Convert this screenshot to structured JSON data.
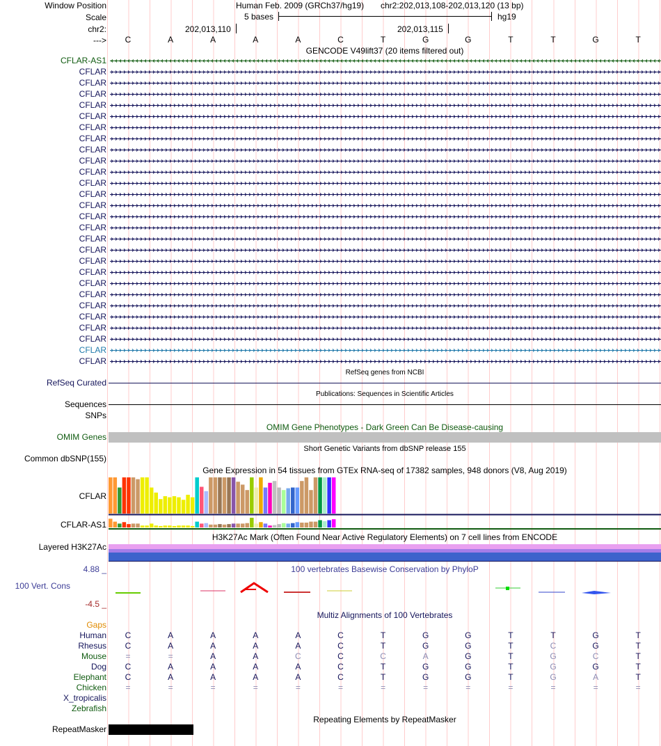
{
  "header": {
    "window_position_label": "Window Position",
    "assembly": "Human Feb. 2009 (GRCh37/hg19)",
    "position": "chr2:202,013,108-202,013,120 (13 bp)",
    "scale_label": "Scale",
    "scale_text": "5 bases",
    "scale_db": "hg19",
    "chrom_label": "chr2:",
    "tick1": "202,013,110",
    "tick2": "202,013,115",
    "strand_label": "--->",
    "bases": [
      "C",
      "A",
      "A",
      "A",
      "A",
      "C",
      "T",
      "G",
      "G",
      "T",
      "T",
      "G",
      "T"
    ]
  },
  "gencode": {
    "title": "GENCODE V49lift37 (20 items filtered out)",
    "items": [
      {
        "label": "CFLAR-AS1",
        "strand": "-",
        "color": "#0f5a0f"
      },
      {
        "label": "CFLAR",
        "strand": "+",
        "color": "#14145a"
      },
      {
        "label": "CFLAR",
        "strand": "+",
        "color": "#14145a"
      },
      {
        "label": "CFLAR",
        "strand": "+",
        "color": "#14145a"
      },
      {
        "label": "CFLAR",
        "strand": "+",
        "color": "#14145a"
      },
      {
        "label": "CFLAR",
        "strand": "+",
        "color": "#14145a"
      },
      {
        "label": "CFLAR",
        "strand": "+",
        "color": "#14145a"
      },
      {
        "label": "CFLAR",
        "strand": "+",
        "color": "#14145a"
      },
      {
        "label": "CFLAR",
        "strand": "+",
        "color": "#14145a"
      },
      {
        "label": "CFLAR",
        "strand": "+",
        "color": "#14145a"
      },
      {
        "label": "CFLAR",
        "strand": "+",
        "color": "#14145a"
      },
      {
        "label": "CFLAR",
        "strand": "+",
        "color": "#14145a"
      },
      {
        "label": "CFLAR",
        "strand": "+",
        "color": "#14145a"
      },
      {
        "label": "CFLAR",
        "strand": "+",
        "color": "#14145a"
      },
      {
        "label": "CFLAR",
        "strand": "+",
        "color": "#14145a"
      },
      {
        "label": "CFLAR",
        "strand": "+",
        "color": "#14145a"
      },
      {
        "label": "CFLAR",
        "strand": "+",
        "color": "#14145a"
      },
      {
        "label": "CFLAR",
        "strand": "+",
        "color": "#14145a"
      },
      {
        "label": "CFLAR",
        "strand": "+",
        "color": "#14145a"
      },
      {
        "label": "CFLAR",
        "strand": "+",
        "color": "#14145a"
      },
      {
        "label": "CFLAR",
        "strand": "+",
        "color": "#14145a"
      },
      {
        "label": "CFLAR",
        "strand": "+",
        "color": "#14145a"
      },
      {
        "label": "CFLAR",
        "strand": "+",
        "color": "#14145a"
      },
      {
        "label": "CFLAR",
        "strand": "+",
        "color": "#14145a"
      },
      {
        "label": "CFLAR",
        "strand": "+",
        "color": "#14145a"
      },
      {
        "label": "CFLAR",
        "strand": "+",
        "color": "#14145a"
      },
      {
        "label": "CFLAR",
        "strand": "+",
        "color": "#1e78aa"
      },
      {
        "label": "CFLAR",
        "strand": "+",
        "color": "#14145a"
      }
    ]
  },
  "refseq": {
    "title": "RefSeq genes from NCBI",
    "label": "RefSeq Curated"
  },
  "publications": {
    "title": "Publications: Sequences in Scientific Articles",
    "label": "Sequences"
  },
  "snps": {
    "label": "SNPs"
  },
  "omim": {
    "title": "OMIM Gene Phenotypes - Dark Green Can Be Disease-causing",
    "label": "OMIM Genes"
  },
  "dbsnp": {
    "title": "Short Genetic Variants from dbSNP release 155",
    "label": "Common dbSNP(155)"
  },
  "gtex": {
    "title": "Gene Expression in 54 tissues from GTEx RNA-seq of 17382 samples, 948 donors (V8, Aug 2019)",
    "label_cflar": "CFLAR",
    "label_as1": "CFLAR-AS1",
    "colors": [
      "#ff9933",
      "#ff9933",
      "#339933",
      "#ff3300",
      "#ff3300",
      "#cc9966",
      "#cc9966",
      "#eeee00",
      "#eeee00",
      "#eeee00",
      "#eeee00",
      "#eeee00",
      "#eeee00",
      "#eeee00",
      "#eeee00",
      "#eeee00",
      "#eeee00",
      "#eeee00",
      "#eeee00",
      "#00cccc",
      "#ff5577",
      "#aabbff",
      "#cc9966",
      "#cc9966",
      "#997755",
      "#cc9966",
      "#997755",
      "#8855aa",
      "#cc9966",
      "#cc9966",
      "#cc9966",
      "#99cc00",
      "#eeeeaa",
      "#eeaa00",
      "#7777ff",
      "#ff00bb",
      "#c0c0c0",
      "#bbbbbb",
      "#aaff99",
      "#77aaee",
      "#3366cc",
      "#6699ff",
      "#cc9966",
      "#cc9966",
      "#cc9966",
      "#cc9966",
      "#009944",
      "#aaeecc",
      "#3333ff",
      "#ff00ff"
    ],
    "cflar_values": [
      100,
      100,
      72,
      100,
      100,
      100,
      95,
      100,
      100,
      72,
      58,
      40,
      48,
      45,
      48,
      45,
      38,
      52,
      45,
      100,
      74,
      62,
      100,
      100,
      100,
      100,
      100,
      100,
      88,
      80,
      65,
      100,
      72,
      100,
      72,
      85,
      90,
      72,
      65,
      70,
      72,
      72,
      90,
      100,
      65,
      100,
      100,
      100,
      100,
      100
    ],
    "as1_values": [
      90,
      60,
      40,
      55,
      35,
      40,
      40,
      20,
      20,
      40,
      20,
      15,
      20,
      20,
      15,
      20,
      20,
      20,
      15,
      60,
      40,
      45,
      30,
      30,
      35,
      30,
      35,
      40,
      40,
      40,
      45,
      100,
      40,
      55,
      40,
      20,
      25,
      35,
      45,
      40,
      45,
      55,
      50,
      50,
      60,
      60,
      75,
      65,
      75,
      85
    ]
  },
  "h3k27ac": {
    "title": "H3K27Ac Mark (Often Found Near Active Regulatory Elements) on 7 cell lines from ENCODE",
    "label": "Layered H3K27Ac"
  },
  "phylop": {
    "title": "100 vertebrates Basewise Conservation by PhyloP",
    "label": "100 Vert. Cons",
    "max": "4.88 _",
    "min": "-4.5 _"
  },
  "multiz": {
    "title": "Multiz Alignments of 100 Vertebrates",
    "gaps_label": "Gaps",
    "species": [
      {
        "name": "Human",
        "color": "#14145a",
        "bases": [
          "C",
          "A",
          "A",
          "A",
          "A",
          "C",
          "T",
          "G",
          "G",
          "T",
          "T",
          "G",
          "T"
        ],
        "faded": [
          0,
          0,
          0,
          0,
          0,
          0,
          0,
          0,
          0,
          0,
          0,
          0,
          0
        ]
      },
      {
        "name": "Rhesus",
        "color": "#14145a",
        "bases": [
          "C",
          "A",
          "A",
          "A",
          "A",
          "C",
          "T",
          "G",
          "G",
          "T",
          "C",
          "G",
          "T"
        ],
        "faded": [
          0,
          0,
          0,
          0,
          0,
          0,
          0,
          0,
          0,
          0,
          1,
          0,
          0
        ]
      },
      {
        "name": "Mouse",
        "color": "#0f5a0f",
        "bases": [
          "=",
          "=",
          "A",
          "A",
          "C",
          "C",
          "C",
          "A",
          "G",
          "T",
          "G",
          "C",
          "T"
        ],
        "faded": [
          1,
          1,
          0,
          0,
          1,
          0,
          1,
          1,
          0,
          0,
          1,
          1,
          0
        ]
      },
      {
        "name": "Dog",
        "color": "#14145a",
        "bases": [
          "C",
          "A",
          "A",
          "A",
          "A",
          "C",
          "T",
          "G",
          "G",
          "T",
          "G",
          "G",
          "T"
        ],
        "faded": [
          0,
          0,
          0,
          0,
          0,
          0,
          0,
          0,
          0,
          0,
          1,
          0,
          0
        ]
      },
      {
        "name": "Elephant",
        "color": "#0f5a0f",
        "bases": [
          "C",
          "A",
          "A",
          "A",
          "A",
          "C",
          "T",
          "G",
          "G",
          "T",
          "G",
          "A",
          "T"
        ],
        "faded": [
          0,
          0,
          0,
          0,
          0,
          0,
          0,
          0,
          0,
          0,
          1,
          1,
          0
        ]
      },
      {
        "name": "Chicken",
        "color": "#0f5a0f",
        "bases": [
          "=",
          "=",
          "=",
          "=",
          "=",
          "=",
          "=",
          "=",
          "=",
          "=",
          "=",
          "=",
          "="
        ],
        "faded": [
          1,
          1,
          1,
          1,
          1,
          1,
          1,
          1,
          1,
          1,
          1,
          1,
          1
        ]
      },
      {
        "name": "X_tropicalis",
        "color": "#14145a",
        "bases": [],
        "faded": []
      },
      {
        "name": "Zebrafish",
        "color": "#0f5a0f",
        "bases": [],
        "faded": []
      }
    ]
  },
  "repeatmasker": {
    "title": "Repeating Elements by RepeatMasker",
    "label": "RepeatMasker"
  },
  "colors": {
    "guide": "#ffcccc",
    "navy": "#14145a",
    "green": "#0f5a0f",
    "omim_bar": "#c0c0c0"
  }
}
